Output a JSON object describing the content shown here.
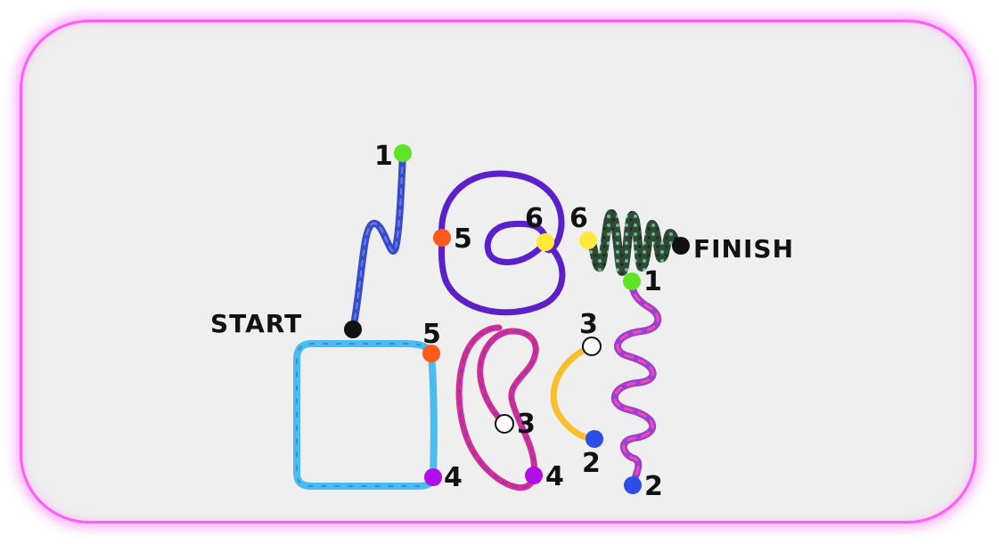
{
  "labels": {
    "start": "START",
    "finish": "FINISH"
  },
  "numbers": {
    "n1_top": "1",
    "n1_right": "1",
    "n2_orange_arc": "2",
    "n2_wave": "2",
    "n3_crescent": "3",
    "n3_orange_arc": "3",
    "n4_square": "4",
    "n4_crescent": "4",
    "n5_loop": "5",
    "n5_square": "5",
    "n6_loop": "6",
    "n6_zigzag": "6"
  },
  "colors": {
    "border": "#ff5cf8",
    "background": "#efefef",
    "endpoint_black": "#111111",
    "dot_green": "#5fe327",
    "dot_blue": "#2b4de8",
    "dot_white": "#ffffff",
    "dot_purple": "#b00ee6",
    "dot_orange": "#fa5a1a",
    "dot_yellow": "#ffe83a",
    "path_start_squiggle": "#3a4bc9",
    "path_loop": "#5b20c9",
    "path_zigzag": "#2f4a35",
    "path_wave": "#9d3fd0",
    "path_orange_arc": "#f8bf2c",
    "path_crescent": "#d62e8e",
    "path_square": "#4bbcf0"
  }
}
